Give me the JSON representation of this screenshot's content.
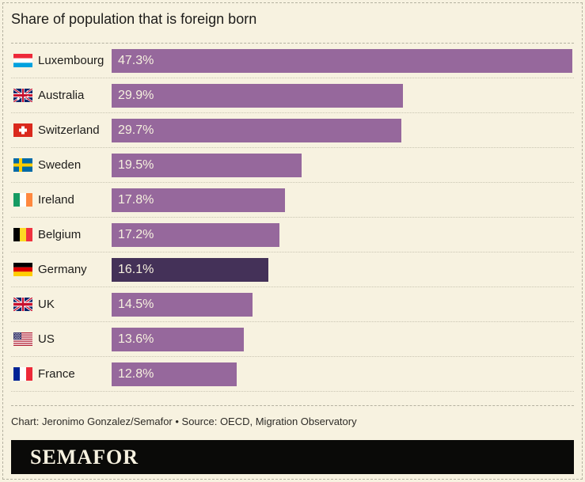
{
  "page": {
    "title": "Share of population that is foreign born",
    "credit": "Chart: Jeronimo Gonzalez/Semafor • Source: OECD, Migration Observatory",
    "brand": "SEMAFOR"
  },
  "colors": {
    "background": "#f7f2e0",
    "bar": "#96689c",
    "bar_highlight": "#443158",
    "bar_label": "#f6f1df",
    "text": "#1d1c1a",
    "separator": "#c9c5b2",
    "dashed_line": "#b4b1a0",
    "brand_bg": "#0a0a08",
    "brand_text": "#f6f1df"
  },
  "chart_data": {
    "type": "bar",
    "orientation": "horizontal",
    "title": "Share of population that is foreign born",
    "xlabel": "",
    "ylabel": "",
    "xlim": [
      0,
      47.3
    ],
    "grid": false,
    "legend": "none",
    "value_format": "percent",
    "categories": [
      "Luxembourg",
      "Australia",
      "Switzerland",
      "Sweden",
      "Ireland",
      "Belgium",
      "Germany",
      "UK",
      "US",
      "France"
    ],
    "values": [
      47.3,
      29.9,
      29.7,
      19.5,
      17.8,
      17.2,
      16.1,
      14.5,
      13.6,
      12.8
    ],
    "labels": [
      "47.3%",
      "29.9%",
      "29.7%",
      "19.5%",
      "17.8%",
      "17.2%",
      "16.1%",
      "14.5%",
      "13.6%",
      "12.8%"
    ],
    "flags": [
      "luxembourg",
      "australia",
      "switzerland",
      "sweden",
      "ireland",
      "belgium",
      "germany",
      "uk",
      "us",
      "france"
    ],
    "highlighted_category": "Germany"
  }
}
